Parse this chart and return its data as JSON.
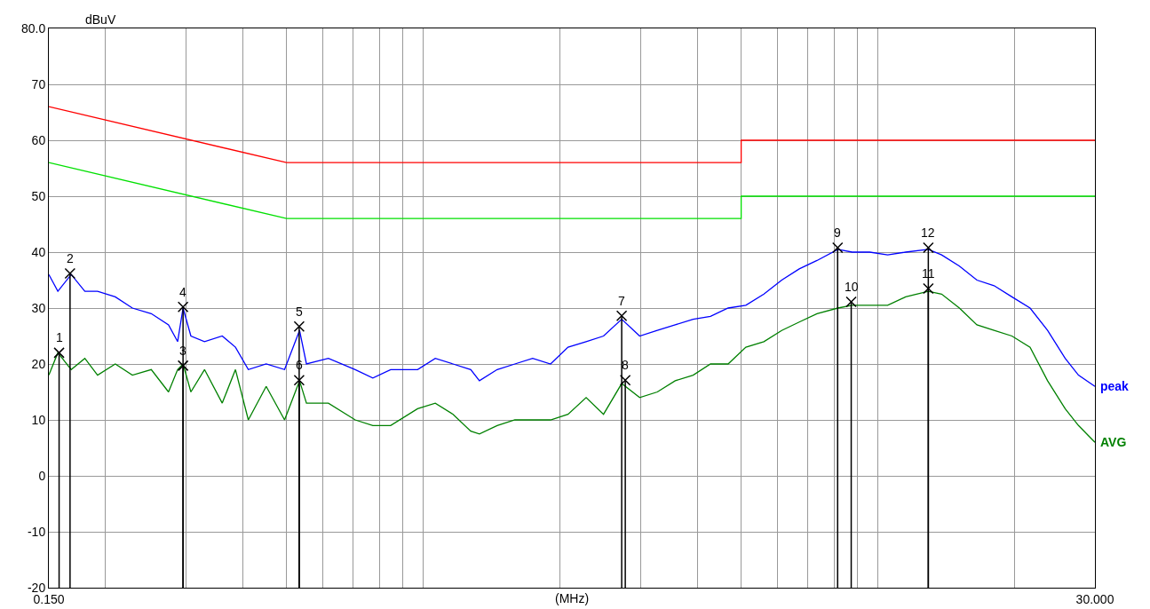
{
  "chart_data": {
    "type": "line",
    "ylabel": "dBuV",
    "xlabel": "(MHz)",
    "log": "x",
    "grid": true,
    "legend": false,
    "marker": "none",
    "line_style": "solid",
    "xlim": [
      0.15,
      30
    ],
    "ylim": [
      -20,
      80
    ],
    "xticks": [
      {
        "value": 0.15,
        "label": "0.150"
      },
      {
        "value": 0.2,
        "label": null
      },
      {
        "value": 0.3,
        "label": null
      },
      {
        "value": 0.4,
        "label": null
      },
      {
        "value": 0.5,
        "label": null
      },
      {
        "value": 0.6,
        "label": null
      },
      {
        "value": 0.7,
        "label": null
      },
      {
        "value": 0.8,
        "label": null
      },
      {
        "value": 0.9,
        "label": null
      },
      {
        "value": 1,
        "label": null
      },
      {
        "value": 2,
        "label": null
      },
      {
        "value": 3,
        "label": null
      },
      {
        "value": 4,
        "label": null
      },
      {
        "value": 5,
        "label": null
      },
      {
        "value": 6,
        "label": null
      },
      {
        "value": 7,
        "label": null
      },
      {
        "value": 8,
        "label": null
      },
      {
        "value": 9,
        "label": null
      },
      {
        "value": 10,
        "label": null
      },
      {
        "value": 20,
        "label": null
      },
      {
        "value": 30,
        "label": "30.000"
      }
    ],
    "yticks": [
      -20,
      -10,
      0,
      10,
      20,
      30,
      40,
      50,
      60,
      70,
      {
        "value": 80,
        "label": "80.0"
      }
    ],
    "series": [
      {
        "color": "#ff0000",
        "x": [
          0.15,
          0.5,
          5,
          5,
          30
        ],
        "values": [
          66,
          56,
          56,
          60,
          60
        ]
      },
      {
        "color": "#00e000",
        "x": [
          0.15,
          0.5,
          5,
          5,
          30
        ],
        "values": [
          56,
          46,
          46,
          50,
          50
        ]
      },
      {
        "name": "peak",
        "color": "#0000ff",
        "x": [
          0.15,
          0.157,
          0.168,
          0.18,
          0.192,
          0.21,
          0.229,
          0.252,
          0.275,
          0.288,
          0.296,
          0.308,
          0.33,
          0.361,
          0.386,
          0.412,
          0.451,
          0.495,
          0.534,
          0.553,
          0.618,
          0.708,
          0.774,
          0.847,
          0.971,
          1.062,
          1.162,
          1.271,
          1.328,
          1.453,
          1.589,
          1.739,
          1.904,
          2.08,
          2.28,
          2.49,
          2.73,
          2.99,
          3.27,
          3.58,
          3.92,
          4.28,
          4.68,
          5.12,
          5.61,
          6.14,
          6.71,
          7.34,
          8.16,
          8.77,
          9.59,
          10.5,
          11.5,
          12.9,
          13.8,
          15.1,
          16.5,
          18,
          19.7,
          21.6,
          23.6,
          25.8,
          27.6,
          30
        ],
        "values": [
          36,
          33,
          36,
          33,
          33,
          32,
          30,
          29,
          27,
          24,
          30,
          25,
          24,
          25,
          23,
          19,
          20,
          19,
          26,
          20,
          21,
          19,
          17.5,
          19,
          19,
          21,
          20,
          19,
          17,
          19,
          20,
          21,
          20,
          23,
          24,
          25,
          28,
          25,
          26,
          27,
          28,
          28.5,
          30,
          30.5,
          32.5,
          35,
          37,
          38.5,
          40.5,
          40,
          40,
          39.5,
          40,
          40.5,
          39.5,
          37.5,
          35,
          34,
          32,
          30,
          26,
          21,
          18,
          16
        ]
      },
      {
        "name": "AVG",
        "color": "#008000",
        "x": [
          0.15,
          0.157,
          0.168,
          0.18,
          0.192,
          0.21,
          0.229,
          0.252,
          0.275,
          0.288,
          0.296,
          0.308,
          0.33,
          0.361,
          0.386,
          0.412,
          0.451,
          0.495,
          0.534,
          0.553,
          0.618,
          0.708,
          0.774,
          0.847,
          0.971,
          1.062,
          1.162,
          1.271,
          1.328,
          1.453,
          1.589,
          1.739,
          1.904,
          2.08,
          2.28,
          2.49,
          2.73,
          2.99,
          3.27,
          3.58,
          3.92,
          4.28,
          4.68,
          5.12,
          5.61,
          6.14,
          6.71,
          7.34,
          8.16,
          8.77,
          9.59,
          10.5,
          11.5,
          12.9,
          13.8,
          15.1,
          16.5,
          18,
          19.7,
          21.6,
          23.6,
          25.8,
          27.6,
          30
        ],
        "values": [
          18,
          22,
          19,
          21,
          18,
          20,
          18,
          19,
          15,
          19,
          20,
          15,
          19,
          13,
          19,
          10,
          16,
          10,
          17,
          13,
          13,
          10,
          9,
          9,
          12,
          13,
          11,
          8,
          7.5,
          9,
          10,
          10,
          10,
          11,
          14,
          11,
          16.5,
          14,
          15,
          17,
          18,
          20,
          20,
          23,
          24,
          26,
          27.5,
          29,
          30,
          30.5,
          30.5,
          30.5,
          32,
          33,
          32.5,
          30,
          27,
          26,
          25,
          23,
          17,
          12,
          9,
          6
        ]
      },
      {
        "type": "lollipop",
        "color": "#000000",
        "marker": "cross",
        "x": [
          0.158,
          0.167,
          0.296,
          0.296,
          0.533,
          0.533,
          2.73,
          2.78,
          8.15,
          8.73,
          12.9,
          12.9
        ],
        "values": [
          22,
          36.2,
          19.7,
          30.2,
          26.7,
          17.1,
          28.6,
          17.1,
          40.8,
          31.1,
          33.5,
          40.8
        ]
      }
    ],
    "annotations": [
      {
        "text": "1",
        "x": 0.158,
        "y": 22
      },
      {
        "text": "2",
        "x": 0.167,
        "y": 36.2
      },
      {
        "text": "3",
        "x": 0.296,
        "y": 19.7
      },
      {
        "text": "4",
        "x": 0.296,
        "y": 30.2
      },
      {
        "text": "5",
        "x": 0.533,
        "y": 26.7
      },
      {
        "text": "6",
        "x": 0.533,
        "y": 17.1
      },
      {
        "text": "7",
        "x": 2.73,
        "y": 28.6
      },
      {
        "text": "8",
        "x": 2.78,
        "y": 17.1
      },
      {
        "text": "9",
        "x": 8.15,
        "y": 40.8
      },
      {
        "text": "10",
        "x": 8.73,
        "y": 31.1
      },
      {
        "text": "11",
        "x": 12.9,
        "y": 33.5
      },
      {
        "text": "12",
        "x": 12.9,
        "y": 40.8
      }
    ]
  }
}
